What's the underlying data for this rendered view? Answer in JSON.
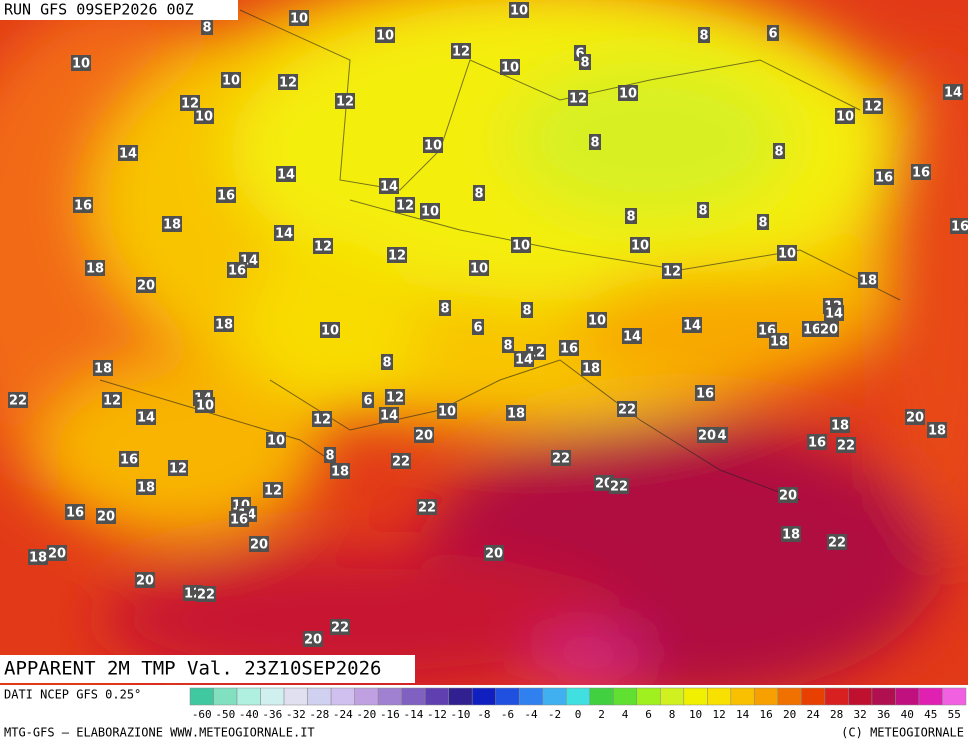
{
  "header": {
    "run": "RUN GFS 09SEP2026 00Z"
  },
  "map": {
    "title": "APPARENT 2M TMP Val. 23Z10SEP2026",
    "labels": [
      "10",
      "10",
      "8",
      "10",
      "12",
      "6",
      "8",
      "10",
      "8",
      "6",
      "10",
      "10",
      "12",
      "12",
      "10",
      "14",
      "12",
      "10",
      "12",
      "12",
      "10",
      "14",
      "10",
      "8",
      "8",
      "14",
      "14",
      "8",
      "16",
      "16",
      "16",
      "16",
      "12",
      "10",
      "8",
      "8",
      "18",
      "14",
      "8",
      "16",
      "12",
      "10",
      "10",
      "10",
      "14",
      "16",
      "12",
      "18",
      "10",
      "12",
      "20",
      "18",
      "8",
      "8",
      "18",
      "10",
      "10",
      "12",
      "14",
      "6",
      "14",
      "14",
      "16",
      "16",
      "20",
      "18",
      "8",
      "12",
      "14",
      "16",
      "8",
      "18",
      "18",
      "22",
      "12",
      "14",
      "10",
      "6",
      "12",
      "14",
      "10",
      "18",
      "22",
      "16",
      "14",
      "12",
      "10",
      "20",
      "20",
      "18",
      "18",
      "16",
      "22",
      "20",
      "4",
      "8",
      "16",
      "12",
      "18",
      "22",
      "22",
      "18",
      "12",
      "20",
      "22",
      "20",
      "10",
      "14",
      "16",
      "22",
      "16",
      "20",
      "18",
      "22",
      "20",
      "18",
      "20",
      "20",
      "20",
      "12",
      "22",
      "22",
      "20"
    ]
  },
  "footer": {
    "source": "DATI NCEP GFS 0.25°",
    "credit": "MTG-GFS — ELABORAZIONE WWW.METEOGIORNALE.IT",
    "copyright": "(C) METEOGIORNALE"
  },
  "colorbar": {
    "labels": [
      "-60",
      "-50",
      "-40",
      "-36",
      "-32",
      "-28",
      "-24",
      "-20",
      "-16",
      "-14",
      "-12",
      "-10",
      "-8",
      "-6",
      "-4",
      "-2",
      "0",
      "2",
      "4",
      "6",
      "8",
      "10",
      "12",
      "14",
      "16",
      "20",
      "24",
      "28",
      "32",
      "36",
      "40",
      "45",
      "55"
    ],
    "colors": [
      "#40c8a0",
      "#80e0c0",
      "#b0f0e0",
      "#d0f0f0",
      "#e0e0f0",
      "#d0d0f0",
      "#d0c0f0",
      "#c0a0e0",
      "#a080d0",
      "#8060c0",
      "#6040b0",
      "#302090",
      "#1020c0",
      "#2050e0",
      "#3080f0",
      "#40b0f0",
      "#40e0e0",
      "#40d040",
      "#60e030",
      "#a0f020",
      "#d0f020",
      "#f0f000",
      "#f8e000",
      "#f8c000",
      "#f8a000",
      "#f07000",
      "#e84000",
      "#d82020",
      "#c01030",
      "#b01050",
      "#c01080",
      "#e020b0",
      "#f060e0"
    ]
  }
}
